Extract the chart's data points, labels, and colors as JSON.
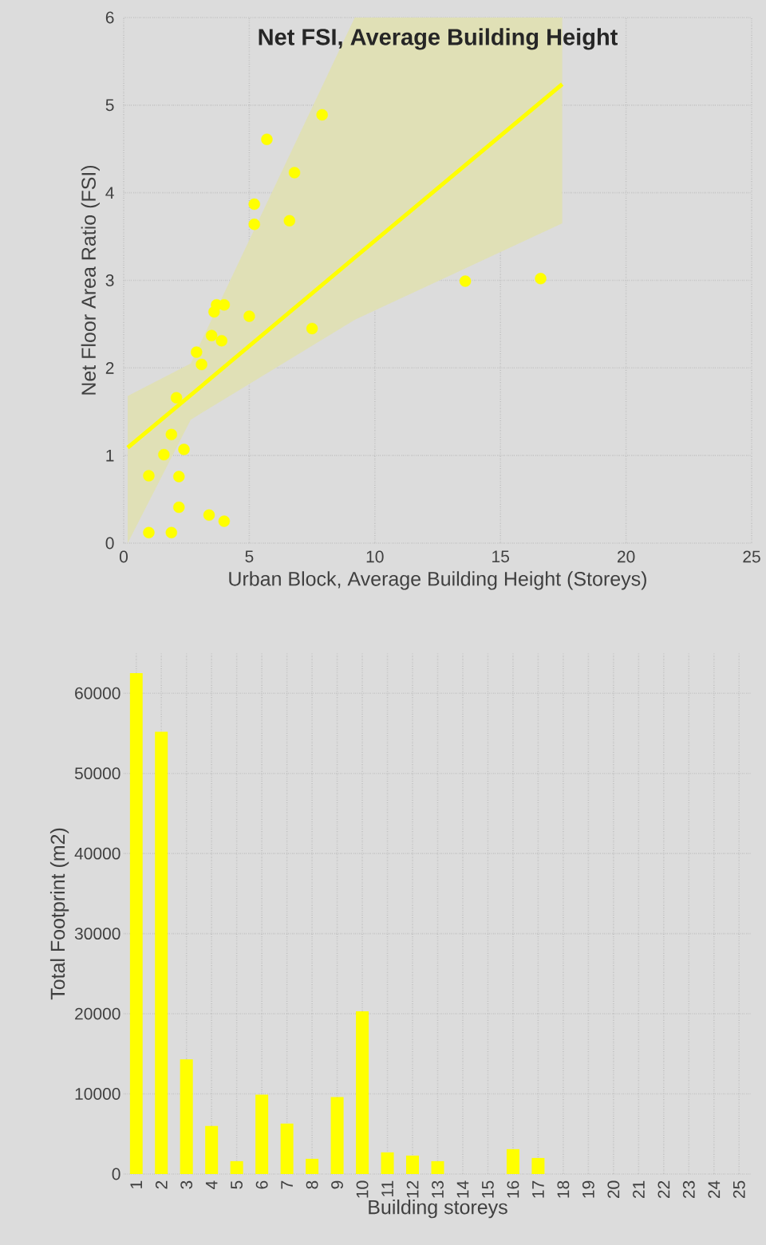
{
  "chart_data": [
    {
      "type": "scatter",
      "title": "Net FSI, Average Building Height",
      "xlabel": "Urban Block, Average Building Height (Storeys)",
      "ylabel": "Net Floor Area Ratio (FSI)",
      "xlim": [
        0,
        25
      ],
      "ylim": [
        0,
        6
      ],
      "xticks": [
        0,
        5,
        10,
        15,
        20,
        25
      ],
      "yticks": [
        0,
        1,
        2,
        3,
        4,
        5,
        6
      ],
      "grid": true,
      "legend": false,
      "series": [
        {
          "type": "scatter",
          "color": "#ffff00",
          "marker": "circle",
          "x": [
            1.0,
            1.9,
            1.0,
            1.6,
            1.9,
            2.2,
            2.4,
            2.2,
            3.4,
            4.0,
            2.1,
            2.9,
            3.1,
            3.5,
            3.9,
            3.6,
            3.7,
            4.0,
            5.0,
            7.5,
            5.2,
            5.2,
            6.6,
            6.8,
            5.7,
            7.9,
            13.6,
            16.6
          ],
          "values": [
            0.12,
            0.12,
            0.77,
            1.01,
            1.24,
            0.76,
            1.07,
            0.41,
            0.32,
            0.25,
            1.66,
            2.18,
            2.04,
            2.37,
            2.31,
            2.64,
            2.72,
            2.72,
            2.59,
            2.45,
            3.64,
            3.87,
            3.68,
            4.23,
            4.61,
            4.89,
            2.99,
            3.02
          ]
        },
        {
          "type": "line",
          "color": "#ffff00",
          "line_style": "solid",
          "x": [
            0.16,
            2.67,
            9.2,
            17.46
          ],
          "values": [
            1.09,
            1.69,
            3.26,
            5.24
          ],
          "lower": [
            0.0,
            1.41,
            2.55,
            3.65
          ],
          "upper": [
            1.68,
            2.05,
            6.0,
            6.0
          ]
        }
      ]
    },
    {
      "type": "bar",
      "xlabel": "Building storeys",
      "ylabel": "Total Footprint (m2)",
      "categories": [
        "1",
        "2",
        "3",
        "4",
        "5",
        "6",
        "7",
        "8",
        "9",
        "10",
        "11",
        "12",
        "13",
        "14",
        "15",
        "16",
        "17",
        "18",
        "19",
        "20",
        "21",
        "22",
        "23",
        "24",
        "25"
      ],
      "values": [
        62500,
        55200,
        14300,
        6000,
        1600,
        9900,
        6300,
        1900,
        9600,
        20300,
        2700,
        2300,
        1600,
        0,
        0,
        3100,
        2000,
        0,
        0,
        0,
        0,
        0,
        0,
        0,
        0
      ],
      "color": "#ffff00",
      "ylim": [
        0,
        65000
      ],
      "yticks": [
        0,
        10000,
        20000,
        30000,
        40000,
        50000,
        60000
      ],
      "grid": true,
      "legend": false
    }
  ]
}
